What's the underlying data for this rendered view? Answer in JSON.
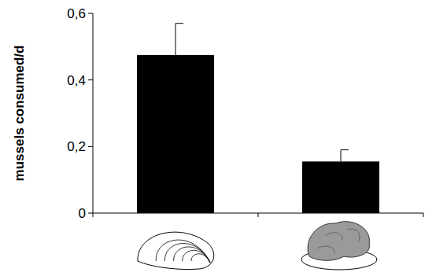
{
  "chart_data": {
    "type": "bar",
    "y_label": "mussels consumed/d",
    "categories": [
      null,
      null
    ],
    "values": [
      0.475,
      0.155
    ],
    "errors": [
      0.095,
      0.035
    ],
    "color": "#000000",
    "ylim": [
      0,
      0.6
    ],
    "yticks": [
      0,
      {
        "value": 0.2,
        "label": "0,2"
      },
      {
        "value": 0.4,
        "label": "0,4"
      },
      {
        "value": 0.6,
        "label": "0,6"
      }
    ],
    "grid": false
  }
}
